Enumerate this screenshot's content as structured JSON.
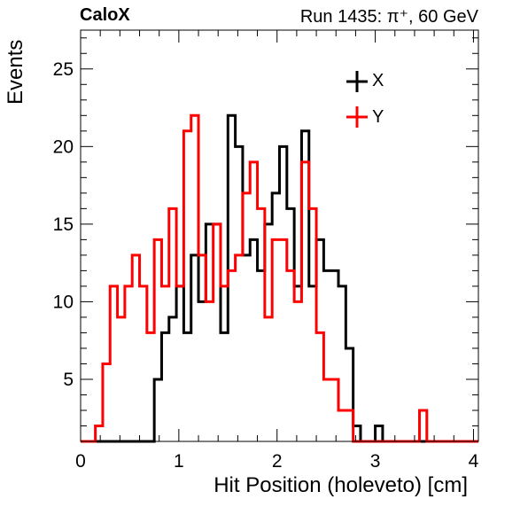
{
  "header": {
    "left": "CaloX",
    "right": "Run 1435: π⁺, 60 GeV"
  },
  "chart_data": {
    "type": "histogram",
    "xlabel": "Hit Position (holeveto) [cm]",
    "ylabel": "Events",
    "xlim": [
      0,
      4.05
    ],
    "ylim": [
      1,
      27.5
    ],
    "x_ticks": [
      "0",
      "1",
      "2",
      "3",
      "4"
    ],
    "y_ticks": [
      "5",
      "10",
      "15",
      "20",
      "25"
    ],
    "bin_width": 0.075,
    "x_start": 0,
    "legend_position": "top-right",
    "series": [
      {
        "name": "X",
        "color": "#000000",
        "values": [
          1,
          1,
          1,
          1,
          1,
          1,
          1,
          1,
          1,
          1,
          5,
          8,
          9,
          11,
          8,
          13,
          10,
          15,
          15,
          8,
          22,
          20,
          13,
          14,
          12,
          15,
          17,
          20,
          16,
          11,
          21,
          11,
          14,
          12,
          12,
          11,
          7,
          2,
          1,
          1,
          2,
          1,
          1,
          1,
          1,
          1,
          1,
          1,
          1,
          1,
          1,
          1,
          1,
          1
        ]
      },
      {
        "name": "Y",
        "color": "#ff0000",
        "values": [
          1,
          1,
          2,
          6,
          11,
          9,
          11,
          13,
          11,
          8,
          14,
          11,
          16,
          11,
          21,
          22,
          13,
          10,
          15,
          11,
          12,
          13,
          17,
          19,
          16,
          9,
          14,
          14,
          12,
          10,
          19,
          16,
          8,
          5,
          5,
          3,
          3,
          1,
          1,
          1,
          1,
          1,
          1,
          1,
          1,
          1,
          3,
          1,
          1,
          1,
          1,
          1,
          1,
          1
        ]
      }
    ]
  }
}
